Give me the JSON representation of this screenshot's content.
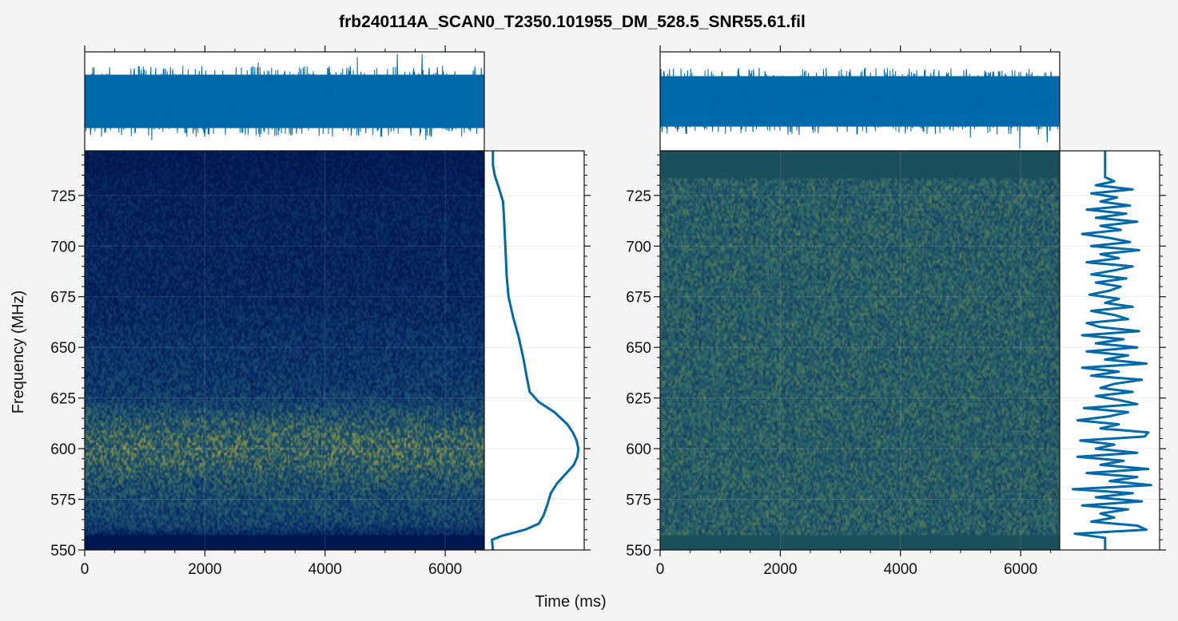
{
  "figure": {
    "title": "frb240114A_SCAN0_T2350.101955_DM_528.5_SNR55.61.fil",
    "xlabel": "Time (ms)",
    "ylabel": "Frequency (MHz)"
  },
  "chart_data": [
    {
      "type": "heatmap",
      "panel": "left",
      "title": "",
      "xlabel": "Time (ms)",
      "ylabel": "Frequency (MHz)",
      "xlim": [
        0,
        6650
      ],
      "ylim": [
        550,
        747
      ],
      "x_ticks": [
        0,
        2000,
        4000,
        6000
      ],
      "y_ticks": [
        550,
        575,
        600,
        625,
        650,
        675,
        700,
        725
      ],
      "grid": true,
      "colormap": [
        "#001751",
        "#0b2f68",
        "#15496e",
        "#2a6068",
        "#5f7d4f",
        "#c4a53a"
      ],
      "masked_band_mhz": [
        550,
        558
      ],
      "timeseries": {
        "type": "line",
        "color": "#0069aa",
        "x_range": [
          0,
          6650
        ],
        "level": 0.5,
        "noise_amplitude": 0.36
      },
      "spectrum": {
        "type": "line",
        "color": "#0069aa",
        "frequency_mhz": [
          550,
          555,
          557,
          560,
          563,
          567,
          572,
          578,
          583,
          588,
          592,
          596,
          600,
          604,
          608,
          612,
          618,
          623,
          628,
          635,
          645,
          655,
          665,
          675,
          685,
          695,
          705,
          715,
          722,
          728,
          735,
          740,
          747
        ],
        "intensity": [
          0.05,
          0.04,
          0.15,
          0.4,
          0.55,
          0.6,
          0.64,
          0.68,
          0.75,
          0.85,
          0.93,
          0.97,
          0.98,
          0.96,
          0.92,
          0.86,
          0.72,
          0.55,
          0.45,
          0.42,
          0.38,
          0.33,
          0.27,
          0.22,
          0.2,
          0.19,
          0.18,
          0.17,
          0.16,
          0.12,
          0.07,
          0.05,
          0.05
        ]
      }
    },
    {
      "type": "heatmap",
      "panel": "right",
      "title": "",
      "xlabel": "Time (ms)",
      "ylabel": "",
      "xlim": [
        0,
        6650
      ],
      "ylim": [
        550,
        747
      ],
      "x_ticks": [
        0,
        2000,
        4000,
        6000
      ],
      "y_ticks": [
        550,
        575,
        600,
        625,
        650,
        675,
        700,
        725
      ],
      "grid": true,
      "colormap": [
        "#12365e",
        "#1b4e66",
        "#245c6a",
        "#2f6968",
        "#5a7d4f",
        "#b79a3c"
      ],
      "masked_color": "#1b4f5b",
      "masked_bands_mhz": [
        [
          550,
          558
        ],
        [
          734,
          747
        ]
      ],
      "timeseries": {
        "type": "line",
        "color": "#0069aa",
        "x_range": [
          0,
          6650
        ],
        "level": 0.5,
        "noise_amplitude": 0.34
      },
      "spectrum": {
        "type": "line",
        "color": "#0069aa",
        "baseline": 0.45,
        "frequency_mhz": [
          556,
          558,
          560,
          562,
          564,
          566,
          568,
          570,
          572,
          574,
          576,
          578,
          580,
          582,
          584,
          586,
          588,
          590,
          592,
          594,
          596,
          598,
          600,
          602,
          604,
          606,
          608,
          610,
          612,
          614,
          616,
          618,
          620,
          622,
          624,
          626,
          628,
          630,
          632,
          634,
          636,
          638,
          640,
          642,
          644,
          646,
          648,
          650,
          652,
          654,
          656,
          658,
          660,
          662,
          664,
          666,
          668,
          670,
          672,
          674,
          676,
          678,
          680,
          682,
          684,
          686,
          688,
          690,
          692,
          694,
          696,
          698,
          700,
          702,
          704,
          706,
          708,
          710,
          712,
          714,
          716,
          718,
          720,
          722,
          724,
          726,
          728,
          730,
          732,
          734
        ],
        "intensity": [
          0.45,
          0.12,
          0.9,
          0.8,
          0.3,
          0.55,
          0.4,
          0.7,
          0.2,
          0.85,
          0.35,
          0.75,
          0.1,
          0.95,
          0.5,
          0.8,
          0.25,
          0.92,
          0.4,
          0.65,
          0.15,
          0.8,
          0.35,
          0.55,
          0.18,
          0.88,
          0.92,
          0.4,
          0.6,
          0.15,
          0.5,
          0.7,
          0.22,
          0.8,
          0.6,
          0.35,
          0.75,
          0.4,
          0.55,
          0.85,
          0.3,
          0.6,
          0.2,
          0.9,
          0.45,
          0.7,
          0.25,
          0.8,
          0.35,
          0.65,
          0.2,
          0.82,
          0.4,
          0.25,
          0.7,
          0.55,
          0.3,
          0.75,
          0.45,
          0.6,
          0.28,
          0.5,
          0.62,
          0.35,
          0.68,
          0.3,
          0.55,
          0.75,
          0.25,
          0.6,
          0.4,
          0.82,
          0.3,
          0.72,
          0.5,
          0.2,
          0.62,
          0.4,
          0.8,
          0.35,
          0.68,
          0.25,
          0.72,
          0.4,
          0.58,
          0.3,
          0.75,
          0.35,
          0.55,
          0.45
        ]
      }
    }
  ]
}
